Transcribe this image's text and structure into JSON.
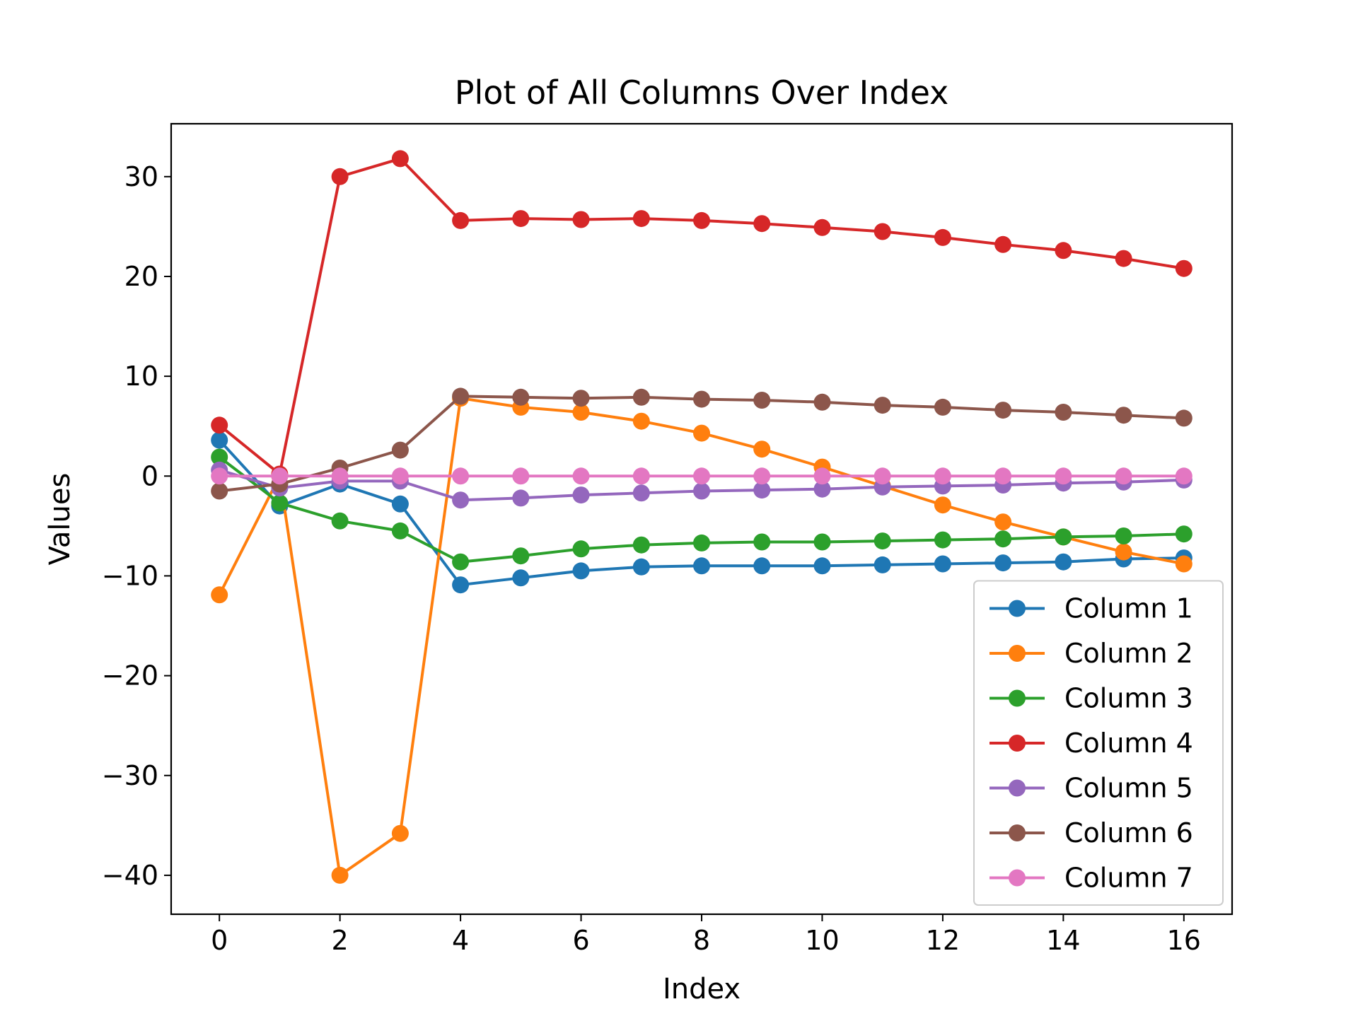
{
  "chart_data": {
    "type": "line",
    "title": "Plot of All Columns Over Index",
    "xlabel": "Index",
    "ylabel": "Values",
    "xlim": [
      -0.8,
      16.8
    ],
    "ylim": [
      -43.9,
      35.3
    ],
    "xticks": [
      0,
      2,
      4,
      6,
      8,
      10,
      12,
      14,
      16
    ],
    "yticks": [
      -40,
      -30,
      -20,
      -10,
      0,
      10,
      20,
      30
    ],
    "grid": false,
    "legend": {
      "position": "lower-right"
    },
    "x": [
      0,
      1,
      2,
      3,
      4,
      5,
      6,
      7,
      8,
      9,
      10,
      11,
      12,
      13,
      14,
      15,
      16
    ],
    "series": [
      {
        "name": "Column 1",
        "color": "#1f77b4",
        "values": [
          3.6,
          -3.0,
          -0.8,
          -2.8,
          -10.9,
          -10.2,
          -9.5,
          -9.1,
          -9.0,
          -9.0,
          -9.0,
          -8.9,
          -8.8,
          -8.7,
          -8.6,
          -8.3,
          -8.2
        ]
      },
      {
        "name": "Column 2",
        "color": "#ff7f0e",
        "values": [
          -11.9,
          0.0,
          -40.0,
          -35.8,
          7.8,
          6.9,
          6.4,
          5.5,
          4.3,
          2.7,
          0.9,
          -1.0,
          -2.9,
          -4.6,
          -6.1,
          -7.6,
          -8.8
        ]
      },
      {
        "name": "Column 3",
        "color": "#2ca02c",
        "values": [
          1.9,
          -2.7,
          -4.5,
          -5.5,
          -8.6,
          -8.0,
          -7.3,
          -6.9,
          -6.7,
          -6.6,
          -6.6,
          -6.5,
          -6.4,
          -6.3,
          -6.1,
          -6.0,
          -5.8
        ]
      },
      {
        "name": "Column 4",
        "color": "#d62728",
        "values": [
          5.1,
          0.2,
          30.0,
          31.8,
          25.6,
          25.8,
          25.7,
          25.8,
          25.6,
          25.3,
          24.9,
          24.5,
          23.9,
          23.2,
          22.6,
          21.8,
          20.8
        ]
      },
      {
        "name": "Column 5",
        "color": "#9467bd",
        "values": [
          0.6,
          -1.2,
          -0.5,
          -0.5,
          -2.4,
          -2.2,
          -1.9,
          -1.7,
          -1.5,
          -1.4,
          -1.3,
          -1.1,
          -1.0,
          -0.9,
          -0.7,
          -0.6,
          -0.4
        ]
      },
      {
        "name": "Column 6",
        "color": "#8c564b",
        "values": [
          -1.5,
          -0.8,
          0.8,
          2.6,
          8.0,
          7.9,
          7.8,
          7.9,
          7.7,
          7.6,
          7.4,
          7.1,
          6.9,
          6.6,
          6.4,
          6.1,
          5.8
        ]
      },
      {
        "name": "Column 7",
        "color": "#e377c2",
        "values": [
          0.0,
          0.0,
          0.0,
          0.0,
          0.0,
          0.0,
          0.0,
          0.0,
          0.0,
          0.0,
          0.0,
          0.0,
          0.0,
          0.0,
          0.0,
          0.0,
          0.0
        ]
      }
    ]
  }
}
